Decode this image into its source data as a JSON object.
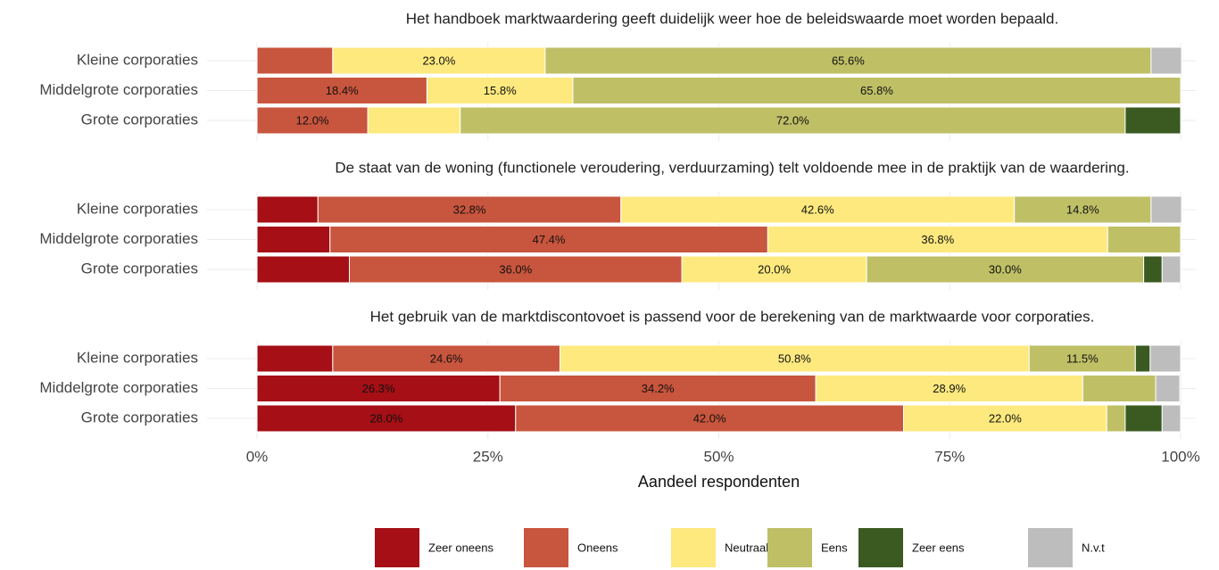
{
  "chart_data": [
    {
      "type": "stacked_bar_horizontal",
      "title": "Het handboek marktwaardering geeft duidelijk weer hoe de beleidswaarde moet worden bepaald.",
      "categories": [
        "Kleine corporaties",
        "Middelgrote corporaties",
        "Grote corporaties"
      ],
      "xlim": [
        0,
        100
      ],
      "series": [
        {
          "name": "Zeer oneens",
          "color": "#a50f15",
          "values": [
            0,
            0,
            0
          ],
          "value_labels": [
            null,
            null,
            null
          ]
        },
        {
          "name": "Oneens",
          "color": "#c8553d",
          "values": [
            8.2,
            18.4,
            12.0
          ],
          "value_labels": [
            null,
            "18.4%",
            "12.0%"
          ]
        },
        {
          "name": "Neutraal",
          "color": "#fde97e",
          "values": [
            23.0,
            15.8,
            10.0
          ],
          "value_labels": [
            "23.0%",
            "15.8%",
            null
          ]
        },
        {
          "name": "Eens",
          "color": "#bfbf66",
          "values": [
            65.6,
            65.8,
            72.0
          ],
          "value_labels": [
            "65.6%",
            "65.8%",
            "72.0%"
          ]
        },
        {
          "name": "Zeer eens",
          "color": "#3a5a22",
          "values": [
            0,
            0,
            6.0
          ],
          "value_labels": [
            null,
            null,
            null
          ]
        },
        {
          "name": "N.v.t",
          "color": "#bdbdbd",
          "values": [
            3.3,
            0,
            0
          ],
          "value_labels": [
            null,
            null,
            null
          ]
        }
      ]
    },
    {
      "type": "stacked_bar_horizontal",
      "title": "De staat van de woning (functionele veroudering, verduurzaming) telt voldoende mee in de praktijk van de waardering.",
      "categories": [
        "Kleine corporaties",
        "Middelgrote corporaties",
        "Grote corporaties"
      ],
      "xlim": [
        0,
        100
      ],
      "series": [
        {
          "name": "Zeer oneens",
          "color": "#a50f15",
          "values": [
            6.6,
            7.9,
            10.0
          ],
          "value_labels": [
            null,
            null,
            null
          ]
        },
        {
          "name": "Oneens",
          "color": "#c8553d",
          "values": [
            32.8,
            47.4,
            36.0
          ],
          "value_labels": [
            "32.8%",
            "47.4%",
            "36.0%"
          ]
        },
        {
          "name": "Neutraal",
          "color": "#fde97e",
          "values": [
            42.6,
            36.8,
            20.0
          ],
          "value_labels": [
            "42.6%",
            "36.8%",
            "20.0%"
          ]
        },
        {
          "name": "Eens",
          "color": "#bfbf66",
          "values": [
            14.8,
            7.9,
            30.0
          ],
          "value_labels": [
            "14.8%",
            null,
            "30.0%"
          ]
        },
        {
          "name": "Zeer eens",
          "color": "#3a5a22",
          "values": [
            0,
            0,
            2.0
          ],
          "value_labels": [
            null,
            null,
            null
          ]
        },
        {
          "name": "N.v.t",
          "color": "#bdbdbd",
          "values": [
            3.3,
            0,
            2.0
          ],
          "value_labels": [
            null,
            null,
            null
          ]
        }
      ]
    },
    {
      "type": "stacked_bar_horizontal",
      "title": "Het gebruik van de marktdiscontovoet is passend voor de berekening van de marktwaarde voor corporaties.",
      "categories": [
        "Kleine corporaties",
        "Middelgrote corporaties",
        "Grote corporaties"
      ],
      "xlim": [
        0,
        100
      ],
      "xticks": [
        {
          "value": 0,
          "label": "0%"
        },
        {
          "value": 25,
          "label": "25%"
        },
        {
          "value": 50,
          "label": "50%"
        },
        {
          "value": 75,
          "label": "75%"
        },
        {
          "value": 100,
          "label": "100%"
        }
      ],
      "xlabel": "Aandeel respondenten",
      "series": [
        {
          "name": "Zeer oneens",
          "color": "#a50f15",
          "values": [
            8.2,
            26.3,
            28.0
          ],
          "value_labels": [
            null,
            "26.3%",
            "28.0%"
          ]
        },
        {
          "name": "Oneens",
          "color": "#c8553d",
          "values": [
            24.6,
            34.2,
            42.0
          ],
          "value_labels": [
            "24.6%",
            "34.2%",
            "42.0%"
          ]
        },
        {
          "name": "Neutraal",
          "color": "#fde97e",
          "values": [
            50.8,
            28.9,
            22.0
          ],
          "value_labels": [
            "50.8%",
            "28.9%",
            "22.0%"
          ]
        },
        {
          "name": "Eens",
          "color": "#bfbf66",
          "values": [
            11.5,
            7.9,
            2.0
          ],
          "value_labels": [
            "11.5%",
            null,
            null
          ]
        },
        {
          "name": "Zeer eens",
          "color": "#3a5a22",
          "values": [
            1.6,
            0,
            4.0
          ],
          "value_labels": [
            null,
            null,
            null
          ]
        },
        {
          "name": "N.v.t",
          "color": "#bdbdbd",
          "values": [
            3.3,
            2.6,
            2.0
          ],
          "value_labels": [
            null,
            null,
            null
          ]
        }
      ]
    }
  ]
}
